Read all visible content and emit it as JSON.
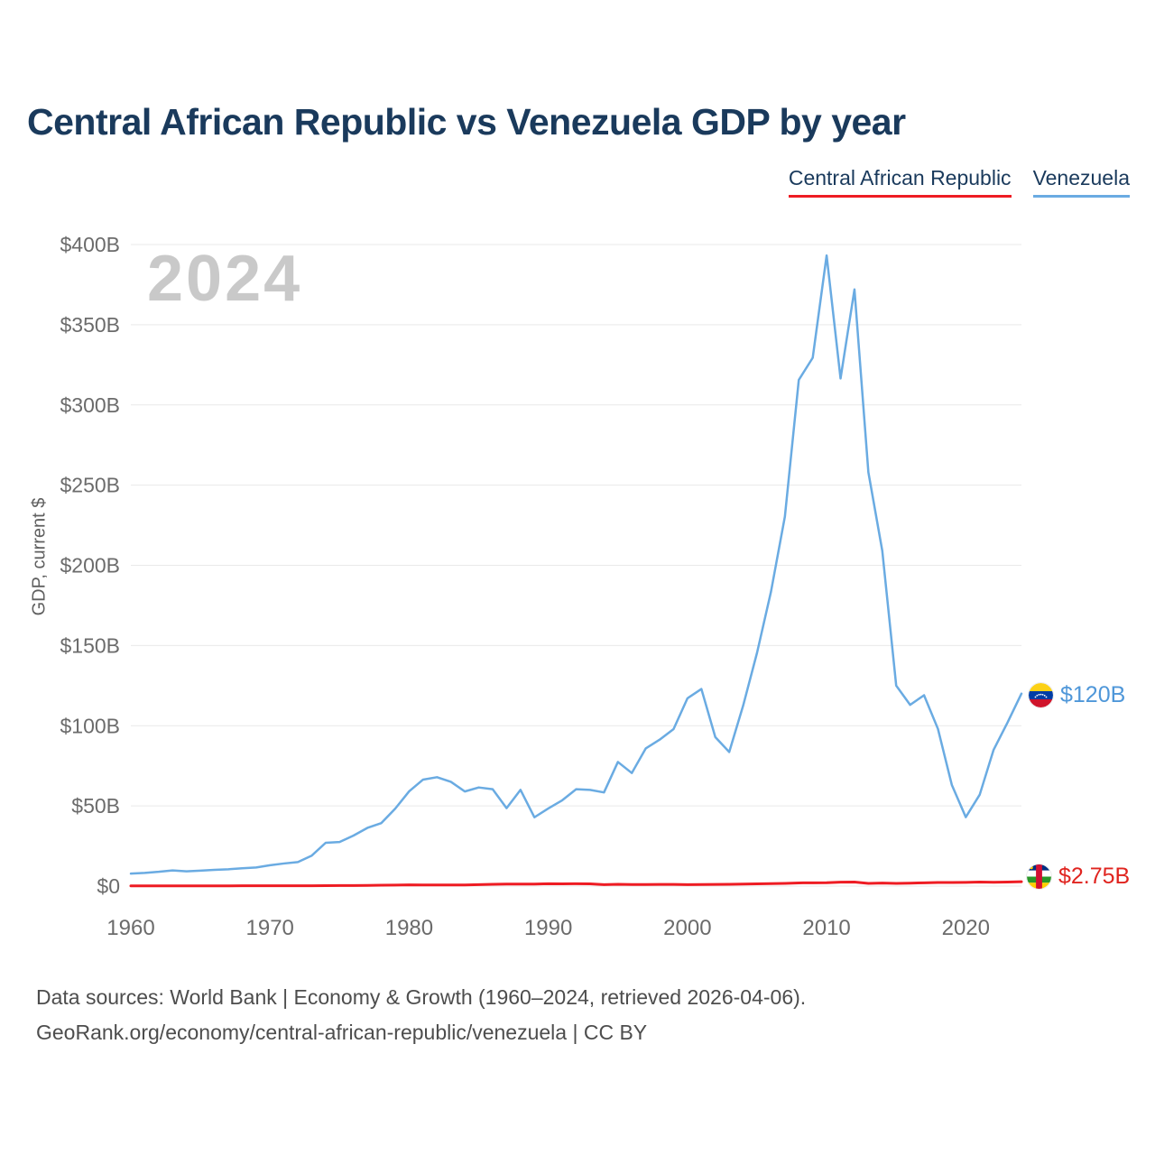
{
  "page": {
    "title": "Central African Republic vs Venezuela GDP by year",
    "watermark": "2024"
  },
  "legend": [
    {
      "label": "Central African Republic",
      "color": "#ee1c23"
    },
    {
      "label": "Venezuela",
      "color": "#6aabe2"
    }
  ],
  "end_labels": {
    "venezuela": {
      "value": "$120B",
      "color": "#4f97d9",
      "flag": "venezuela-flag"
    },
    "central_african_republic": {
      "value": "$2.75B",
      "color": "#e0241f",
      "flag": "central-african-republic-flag"
    }
  },
  "footer": {
    "line1": "Data sources: World Bank | Economy & Growth (1960–2024, retrieved 2026-04-06).",
    "line2": "GeoRank.org/economy/central-african-republic/venezuela | CC BY"
  },
  "chart_data": {
    "type": "line",
    "title": "Central African Republic vs Venezuela GDP by year",
    "xlabel": "",
    "ylabel": "GDP, current $",
    "unit": "billion USD",
    "xlim": [
      1960,
      2024
    ],
    "ylim": [
      0,
      400
    ],
    "grid": "horizontal",
    "legend_position": "top-right",
    "x": [
      1960,
      1961,
      1962,
      1963,
      1964,
      1965,
      1966,
      1967,
      1968,
      1969,
      1970,
      1971,
      1972,
      1973,
      1974,
      1975,
      1976,
      1977,
      1978,
      1979,
      1980,
      1981,
      1982,
      1983,
      1984,
      1985,
      1986,
      1987,
      1988,
      1989,
      1990,
      1991,
      1992,
      1993,
      1994,
      1995,
      1996,
      1997,
      1998,
      1999,
      2000,
      2001,
      2002,
      2003,
      2004,
      2005,
      2006,
      2007,
      2008,
      2009,
      2010,
      2011,
      2012,
      2013,
      2014,
      2015,
      2016,
      2017,
      2018,
      2019,
      2020,
      2021,
      2022,
      2023,
      2024
    ],
    "xticks": [
      {
        "value": 1960,
        "label": "1960"
      },
      {
        "value": 1970,
        "label": "1970"
      },
      {
        "value": 1980,
        "label": "1980"
      },
      {
        "value": 1990,
        "label": "1990"
      },
      {
        "value": 2000,
        "label": "2000"
      },
      {
        "value": 2010,
        "label": "2010"
      },
      {
        "value": 2020,
        "label": "2020"
      }
    ],
    "yticks": [
      {
        "value": 0,
        "label": "$0"
      },
      {
        "value": 50,
        "label": "$50B"
      },
      {
        "value": 100,
        "label": "$100B"
      },
      {
        "value": 150,
        "label": "$150B"
      },
      {
        "value": 200,
        "label": "$200B"
      },
      {
        "value": 250,
        "label": "$250B"
      },
      {
        "value": 300,
        "label": "$300B"
      },
      {
        "value": 350,
        "label": "$350B"
      },
      {
        "value": 400,
        "label": "$400B"
      }
    ],
    "series": [
      {
        "id": "central-african-republic",
        "name": "Central African Republic",
        "color": "#ee1c23",
        "width": 3,
        "end_label": "$2.75B",
        "values": [
          0.11,
          0.12,
          0.13,
          0.14,
          0.15,
          0.15,
          0.16,
          0.17,
          0.18,
          0.18,
          0.18,
          0.19,
          0.2,
          0.22,
          0.25,
          0.33,
          0.36,
          0.42,
          0.54,
          0.64,
          0.8,
          0.71,
          0.72,
          0.68,
          0.7,
          0.93,
          1.11,
          1.24,
          1.27,
          1.24,
          1.49,
          1.43,
          1.51,
          1.42,
          0.93,
          1.12,
          1.01,
          0.95,
          1.02,
          1.04,
          0.91,
          0.97,
          1.04,
          1.14,
          1.27,
          1.41,
          1.54,
          1.7,
          2.0,
          2.06,
          2.14,
          2.43,
          2.51,
          1.69,
          1.9,
          1.7,
          1.83,
          2.07,
          2.28,
          2.22,
          2.33,
          2.52,
          2.38,
          2.56,
          2.75
        ]
      },
      {
        "id": "venezuela",
        "name": "Venezuela",
        "color": "#6aabe2",
        "width": 2.5,
        "end_label": "$120B",
        "values": [
          7.8,
          8.2,
          8.9,
          9.8,
          9.2,
          9.6,
          10.1,
          10.5,
          11.1,
          11.6,
          13.0,
          14.1,
          15.0,
          19.0,
          27.0,
          27.5,
          31.5,
          36.3,
          39.3,
          48.3,
          59.1,
          66.4,
          67.9,
          65.0,
          59.0,
          61.5,
          60.4,
          48.6,
          60.0,
          42.9,
          48.4,
          53.5,
          60.4,
          60.0,
          58.4,
          77.4,
          70.5,
          85.8,
          91.3,
          97.9,
          117.1,
          122.9,
          92.9,
          83.6,
          112.5,
          145.5,
          183.5,
          230.4,
          315.6,
          329.4,
          393.2,
          316.5,
          372.0,
          258.0,
          209.0,
          125.0,
          113.0,
          119.0,
          98.0,
          63.0,
          43.0,
          57.0,
          85.0,
          102.0,
          120.0
        ]
      }
    ]
  }
}
